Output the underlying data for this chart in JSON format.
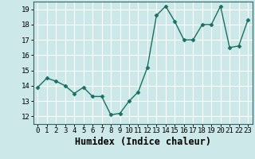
{
  "x": [
    0,
    1,
    2,
    3,
    4,
    5,
    6,
    7,
    8,
    9,
    10,
    11,
    12,
    13,
    14,
    15,
    16,
    17,
    18,
    19,
    20,
    21,
    22,
    23
  ],
  "y": [
    13.9,
    14.5,
    14.3,
    14.0,
    13.5,
    13.9,
    13.3,
    13.3,
    12.1,
    12.2,
    13.0,
    13.6,
    15.2,
    18.6,
    19.2,
    18.2,
    17.0,
    17.0,
    18.0,
    18.0,
    19.2,
    16.5,
    16.6,
    18.3
  ],
  "line_color": "#1a7060",
  "marker": "D",
  "markersize": 2.5,
  "linewidth": 1.0,
  "xlabel": "Humidex (Indice chaleur)",
  "xlim": [
    -0.5,
    23.5
  ],
  "ylim": [
    11.5,
    19.5
  ],
  "yticks": [
    12,
    13,
    14,
    15,
    16,
    17,
    18,
    19
  ],
  "xticks": [
    0,
    1,
    2,
    3,
    4,
    5,
    6,
    7,
    8,
    9,
    10,
    11,
    12,
    13,
    14,
    15,
    16,
    17,
    18,
    19,
    20,
    21,
    22,
    23
  ],
  "bg_color": "#cce8e8",
  "grid_color": "#ffffff",
  "tick_fontsize": 6.5,
  "xlabel_fontsize": 8.5
}
